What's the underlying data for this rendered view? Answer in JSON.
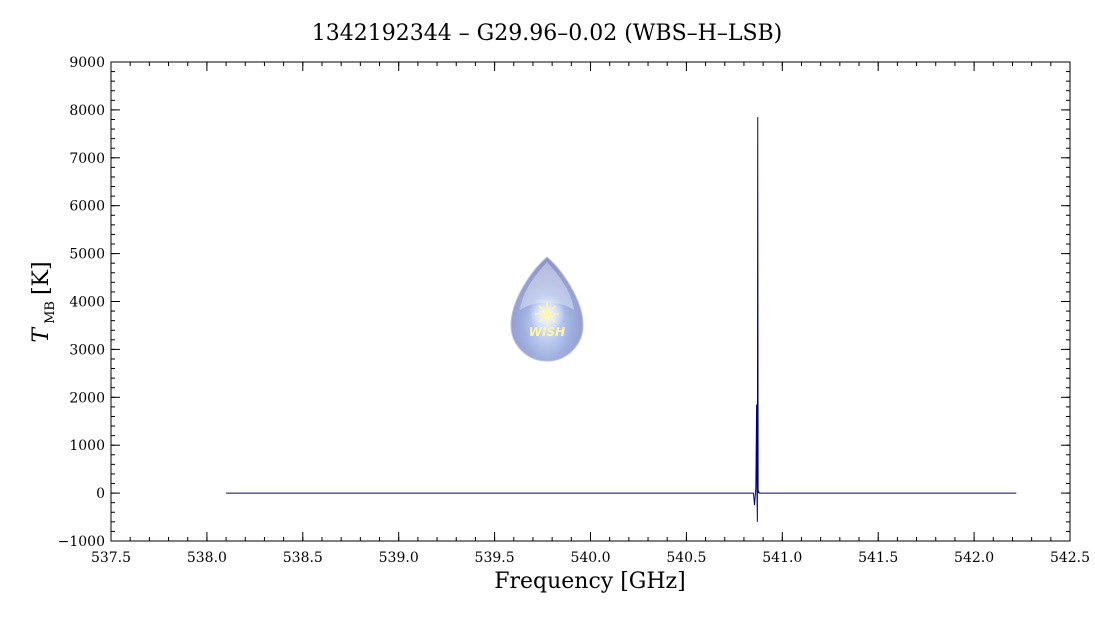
{
  "chart_data": {
    "type": "line",
    "title": "1342192344 – G29.96–0.02 (WBS–H–LSB)",
    "xlabel": "Frequency [GHz]",
    "ylabel_main": "T",
    "ylabel_sub": "MB",
    "ylabel_unit": "[K]",
    "xlim": [
      537.5,
      542.5
    ],
    "ylim": [
      -1000,
      9000
    ],
    "x_ticks": [
      "537.5",
      "538.0",
      "538.5",
      "539.0",
      "539.5",
      "540.0",
      "540.5",
      "541.0",
      "541.5",
      "542.0",
      "542.5"
    ],
    "y_ticks": [
      "−1000",
      "0",
      "1000",
      "2000",
      "3000",
      "4000",
      "5000",
      "6000",
      "7000",
      "8000",
      "9000"
    ],
    "grid": false,
    "series": [
      {
        "color": "#00008b",
        "x": [
          538.1,
          540.85,
          540.855,
          540.86,
          540.862,
          540.866,
          540.868,
          540.87,
          540.872,
          540.874,
          540.876,
          540.878,
          540.88,
          540.885,
          540.89,
          542.22
        ],
        "y": [
          0,
          0,
          -250,
          0,
          100,
          1850,
          0,
          -600,
          7850,
          0,
          50,
          20,
          0,
          0,
          0,
          0
        ]
      }
    ]
  },
  "logo": {
    "text": "WISH"
  }
}
